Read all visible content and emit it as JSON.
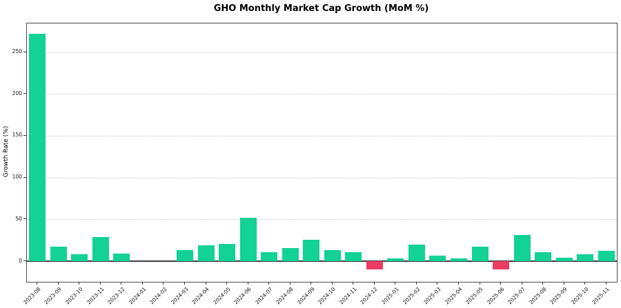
{
  "chart_data": {
    "type": "bar",
    "title": "GHO Monthly Market Cap Growth (MoM %)",
    "xlabel": "",
    "ylabel": "Growth Rate (%)",
    "categories": [
      "2023-08",
      "2023-09",
      "2023-10",
      "2023-11",
      "2023-12",
      "2024-01",
      "2024-02",
      "2024-03",
      "2024-04",
      "2024-05",
      "2024-06",
      "2024-07",
      "2024-08",
      "2024-09",
      "2024-10",
      "2024-11",
      "2024-12",
      "2025-01",
      "2025-02",
      "2025-03",
      "2025-04",
      "2025-05",
      "2025-06",
      "2025-07",
      "2025-08",
      "2025-09",
      "2025-10",
      "2025-11"
    ],
    "values": [
      272,
      17,
      8,
      29,
      9,
      0,
      0,
      13,
      19,
      20.5,
      52,
      11,
      16,
      26,
      13.5,
      11,
      -10,
      3,
      20,
      7,
      3.5,
      17,
      -9.5,
      31,
      11,
      4,
      8,
      12.5
    ],
    "ylim": [
      -24.6,
      284.2
    ],
    "yticks": [
      0,
      50,
      100,
      150,
      200,
      250
    ],
    "grid": {
      "axis": "y",
      "style": "dotted"
    },
    "legend": null,
    "colors": {
      "positive": "#12d296",
      "negative": "#eb3d64",
      "grid": "#c9c9c9",
      "axis": "#4a4a4a",
      "zero_line": "#3d3d3d",
      "background": "#ffffff",
      "text": "#000000"
    }
  }
}
